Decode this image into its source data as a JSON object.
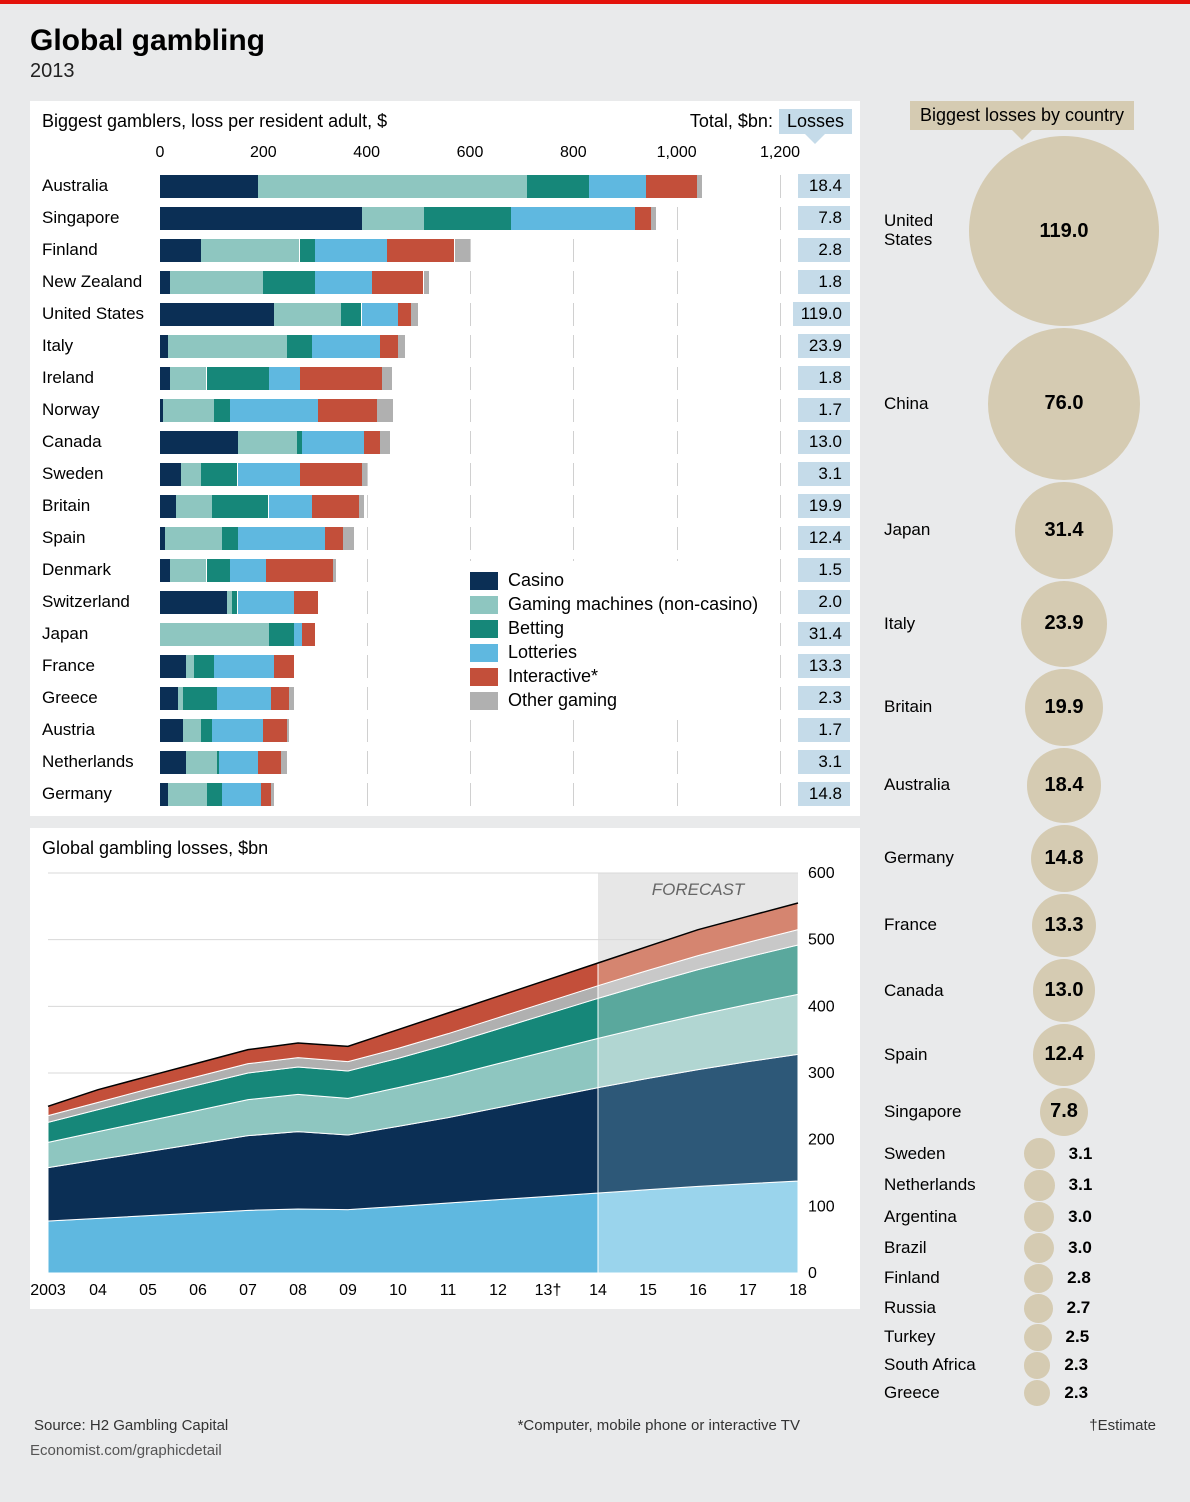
{
  "title": "Global gambling",
  "year": "2013",
  "bar_chart": {
    "subtitle": "Biggest gamblers, loss per resident adult, $",
    "total_label": "Total, $bn:",
    "losses_tag": "Losses",
    "x_ticks": [
      0,
      200,
      400,
      600,
      800,
      "1,000",
      "1,200"
    ],
    "x_max": 1200,
    "background": "#ffffff",
    "gridline_color": "#d0d0d0",
    "total_bg": "#c5dbe9",
    "label_fontsize": 17,
    "segment_keys": [
      "casino",
      "gaming_machines",
      "betting",
      "lotteries",
      "interactive",
      "other"
    ],
    "rows": [
      {
        "country": "Australia",
        "total": "18.4",
        "segments": {
          "casino": 190,
          "gaming_machines": 520,
          "betting": 120,
          "lotteries": 110,
          "interactive": 100,
          "other": 10
        }
      },
      {
        "country": "Singapore",
        "total": "7.8",
        "segments": {
          "casino": 390,
          "gaming_machines": 120,
          "betting": 170,
          "lotteries": 240,
          "interactive": 30,
          "other": 10
        }
      },
      {
        "country": "Finland",
        "total": "2.8",
        "segments": {
          "casino": 80,
          "gaming_machines": 190,
          "betting": 30,
          "lotteries": 140,
          "interactive": 130,
          "other": 30
        }
      },
      {
        "country": "New Zealand",
        "total": "1.8",
        "segments": {
          "casino": 20,
          "gaming_machines": 180,
          "betting": 100,
          "lotteries": 110,
          "interactive": 100,
          "other": 10
        }
      },
      {
        "country": "United States",
        "total": "119.0",
        "segments": {
          "casino": 220,
          "gaming_machines": 130,
          "betting": 40,
          "lotteries": 70,
          "interactive": 25,
          "other": 15
        }
      },
      {
        "country": "Italy",
        "total": "23.9",
        "segments": {
          "casino": 15,
          "gaming_machines": 230,
          "betting": 50,
          "lotteries": 130,
          "interactive": 35,
          "other": 15
        }
      },
      {
        "country": "Ireland",
        "total": "1.8",
        "segments": {
          "casino": 20,
          "gaming_machines": 70,
          "betting": 120,
          "lotteries": 60,
          "interactive": 160,
          "other": 20
        }
      },
      {
        "country": "Norway",
        "total": "1.7",
        "segments": {
          "casino": 5,
          "gaming_machines": 100,
          "betting": 30,
          "lotteries": 170,
          "interactive": 115,
          "other": 30
        }
      },
      {
        "country": "Canada",
        "total": "13.0",
        "segments": {
          "casino": 150,
          "gaming_machines": 115,
          "betting": 10,
          "lotteries": 120,
          "interactive": 30,
          "other": 20
        }
      },
      {
        "country": "Sweden",
        "total": "3.1",
        "segments": {
          "casino": 40,
          "gaming_machines": 40,
          "betting": 70,
          "lotteries": 120,
          "interactive": 120,
          "other": 10
        }
      },
      {
        "country": "Britain",
        "total": "19.9",
        "segments": {
          "casino": 30,
          "gaming_machines": 70,
          "betting": 110,
          "lotteries": 85,
          "interactive": 90,
          "other": 10
        }
      },
      {
        "country": "Spain",
        "total": "12.4",
        "segments": {
          "casino": 10,
          "gaming_machines": 110,
          "betting": 30,
          "lotteries": 170,
          "interactive": 35,
          "other": 20
        }
      },
      {
        "country": "Denmark",
        "total": "1.5",
        "segments": {
          "casino": 20,
          "gaming_machines": 70,
          "betting": 45,
          "lotteries": 70,
          "interactive": 130,
          "other": 5
        }
      },
      {
        "country": "Switzerland",
        "total": "2.0",
        "segments": {
          "casino": 130,
          "gaming_machines": 10,
          "betting": 10,
          "lotteries": 110,
          "interactive": 45,
          "other": 0
        }
      },
      {
        "country": "Japan",
        "total": "31.4",
        "segments": {
          "casino": 0,
          "gaming_machines": 210,
          "betting": 50,
          "lotteries": 15,
          "interactive": 25,
          "other": 0
        }
      },
      {
        "country": "France",
        "total": "13.3",
        "segments": {
          "casino": 50,
          "gaming_machines": 15,
          "betting": 40,
          "lotteries": 115,
          "interactive": 40,
          "other": 0
        }
      },
      {
        "country": "Greece",
        "total": "2.3",
        "segments": {
          "casino": 35,
          "gaming_machines": 10,
          "betting": 65,
          "lotteries": 105,
          "interactive": 35,
          "other": 10
        }
      },
      {
        "country": "Austria",
        "total": "1.7",
        "segments": {
          "casino": 45,
          "gaming_machines": 35,
          "betting": 20,
          "lotteries": 100,
          "interactive": 45,
          "other": 5
        }
      },
      {
        "country": "Netherlands",
        "total": "3.1",
        "segments": {
          "casino": 50,
          "gaming_machines": 60,
          "betting": 5,
          "lotteries": 75,
          "interactive": 45,
          "other": 10
        }
      },
      {
        "country": "Germany",
        "total": "14.8",
        "segments": {
          "casino": 15,
          "gaming_machines": 75,
          "betting": 30,
          "lotteries": 75,
          "interactive": 20,
          "other": 5
        }
      }
    ]
  },
  "legend": {
    "items": [
      {
        "label": "Casino",
        "color": "#0b2f55"
      },
      {
        "label": "Gaming machines (non-casino)",
        "color": "#8ec6c0"
      },
      {
        "label": "Betting",
        "color": "#168779"
      },
      {
        "label": "Lotteries",
        "color": "#5fb8e0"
      },
      {
        "label": "Interactive*",
        "color": "#c34f3a"
      },
      {
        "label": "Other gaming",
        "color": "#b0b0b0"
      }
    ]
  },
  "colors": {
    "casino": "#0b2f55",
    "gaming_machines": "#8ec6c0",
    "betting": "#168779",
    "lotteries": "#5fb8e0",
    "interactive": "#c34f3a",
    "other": "#b0b0b0"
  },
  "area_chart": {
    "title": "Global gambling losses, $bn",
    "years": [
      "2003",
      "04",
      "05",
      "06",
      "07",
      "08",
      "09",
      "10",
      "11",
      "12",
      "13†",
      "14",
      "15",
      "16",
      "17",
      "18"
    ],
    "y_ticks": [
      0,
      100,
      200,
      300,
      400,
      500,
      600
    ],
    "y_max": 600,
    "forecast_label": "FORECAST",
    "forecast_start_index": 11,
    "forecast_bg": "rgba(160,160,160,0.25)",
    "background": "#ffffff",
    "grid_color": "#d8d8d8",
    "totals": [
      250,
      275,
      295,
      315,
      335,
      345,
      340,
      365,
      390,
      415,
      440,
      465,
      490,
      515,
      535,
      555
    ],
    "stack_order": [
      "lotteries",
      "casino",
      "gaming_machines",
      "betting",
      "other",
      "interactive"
    ],
    "forecast_colors": {
      "casino": "#2d5878",
      "gaming_machines": "#b1d6d2",
      "betting": "#5aa89d",
      "lotteries": "#9ad4ec",
      "interactive": "#d58570",
      "other": "#c8c8c8"
    },
    "series": {
      "lotteries": [
        78,
        82,
        86,
        90,
        94,
        96,
        95,
        100,
        105,
        110,
        115,
        120,
        125,
        130,
        134,
        138
      ],
      "casino": [
        80,
        88,
        96,
        104,
        112,
        116,
        112,
        120,
        128,
        138,
        148,
        158,
        167,
        175,
        183,
        190
      ],
      "gaming_machines": [
        38,
        42,
        46,
        50,
        54,
        56,
        55,
        58,
        62,
        66,
        70,
        74,
        78,
        82,
        86,
        90
      ],
      "betting": [
        30,
        33,
        36,
        38,
        40,
        41,
        41,
        44,
        48,
        52,
        56,
        60,
        64,
        68,
        71,
        74
      ],
      "other": [
        10,
        11,
        12,
        13,
        14,
        14,
        14,
        15,
        16,
        17,
        18,
        19,
        20,
        21,
        22,
        23
      ],
      "interactive": [
        14,
        19,
        19,
        20,
        21,
        22,
        23,
        28,
        31,
        32,
        33,
        34,
        36,
        39,
        39,
        40
      ]
    }
  },
  "bubbles": {
    "title": "Biggest losses by country",
    "color": "#d5cbb2",
    "max_value": 119.0,
    "max_diameter": 190,
    "big": [
      {
        "country": "United\nStates",
        "value": "119.0",
        "v": 119.0
      },
      {
        "country": "China",
        "value": "76.0",
        "v": 76.0
      },
      {
        "country": "Japan",
        "value": "31.4",
        "v": 31.4
      },
      {
        "country": "Italy",
        "value": "23.9",
        "v": 23.9
      },
      {
        "country": "Britain",
        "value": "19.9",
        "v": 19.9
      },
      {
        "country": "Australia",
        "value": "18.4",
        "v": 18.4
      },
      {
        "country": "Germany",
        "value": "14.8",
        "v": 14.8
      },
      {
        "country": "France",
        "value": "13.3",
        "v": 13.3
      },
      {
        "country": "Canada",
        "value": "13.0",
        "v": 13.0
      },
      {
        "country": "Spain",
        "value": "12.4",
        "v": 12.4
      },
      {
        "country": "Singapore",
        "value": "7.8",
        "v": 7.8
      }
    ],
    "small": [
      {
        "country": "Sweden",
        "value": "3.1",
        "v": 3.1
      },
      {
        "country": "Netherlands",
        "value": "3.1",
        "v": 3.1
      },
      {
        "country": "Argentina",
        "value": "3.0",
        "v": 3.0
      },
      {
        "country": "Brazil",
        "value": "3.0",
        "v": 3.0
      },
      {
        "country": "Finland",
        "value": "2.8",
        "v": 2.8
      },
      {
        "country": "Russia",
        "value": "2.7",
        "v": 2.7
      },
      {
        "country": "Turkey",
        "value": "2.5",
        "v": 2.5
      },
      {
        "country": "South Africa",
        "value": "2.3",
        "v": 2.3
      },
      {
        "country": "Greece",
        "value": "2.3",
        "v": 2.3
      }
    ]
  },
  "footer": {
    "source": "Source: H2 Gambling Capital",
    "note1": "*Computer, mobile phone or interactive TV",
    "note2": "†Estimate",
    "url": "Economist.com/graphicdetail"
  }
}
